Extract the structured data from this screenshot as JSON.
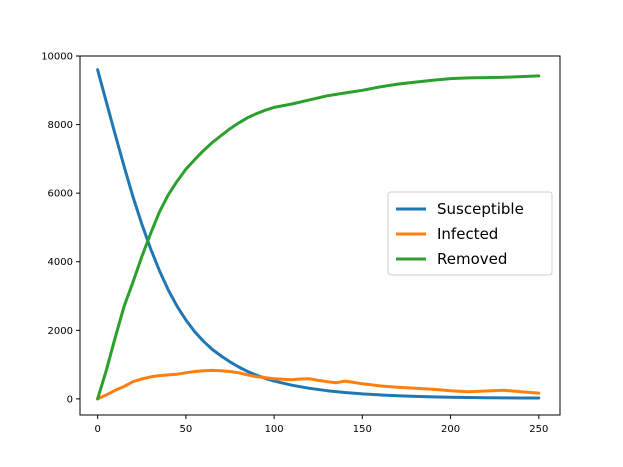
{
  "chart_data": {
    "type": "line",
    "title": "",
    "xlabel": "",
    "ylabel": "",
    "xlim": [
      -10,
      262
    ],
    "ylim": [
      -470,
      10000
    ],
    "xticks": [
      0,
      50,
      100,
      150,
      200,
      250
    ],
    "yticks": [
      0,
      2000,
      4000,
      6000,
      8000,
      10000
    ],
    "grid": false,
    "legend_position": "center-right",
    "series": [
      {
        "name": "Susceptible",
        "color": "#1f77b4",
        "x": [
          0,
          5,
          10,
          15,
          20,
          25,
          30,
          35,
          40,
          45,
          50,
          55,
          60,
          65,
          70,
          75,
          80,
          85,
          90,
          95,
          100,
          110,
          120,
          130,
          140,
          150,
          160,
          170,
          180,
          190,
          200,
          210,
          220,
          230,
          240,
          250
        ],
        "y": [
          9600,
          8640,
          7700,
          6780,
          5900,
          5100,
          4380,
          3740,
          3180,
          2700,
          2300,
          1960,
          1680,
          1440,
          1250,
          1080,
          930,
          800,
          690,
          600,
          520,
          400,
          310,
          240,
          185,
          145,
          115,
          90,
          72,
          58,
          48,
          40,
          35,
          30,
          27,
          25
        ]
      },
      {
        "name": "Infected",
        "color": "#ff7f0e",
        "x": [
          0,
          5,
          10,
          15,
          20,
          25,
          30,
          35,
          40,
          45,
          50,
          55,
          60,
          65,
          70,
          75,
          80,
          85,
          90,
          95,
          100,
          105,
          110,
          115,
          120,
          125,
          130,
          135,
          140,
          145,
          150,
          160,
          170,
          180,
          190,
          200,
          210,
          220,
          230,
          240,
          250
        ],
        "y": [
          0,
          120,
          250,
          360,
          500,
          580,
          640,
          680,
          700,
          720,
          760,
          800,
          820,
          830,
          820,
          800,
          760,
          700,
          650,
          620,
          590,
          570,
          560,
          580,
          590,
          540,
          500,
          470,
          520,
          480,
          440,
          380,
          340,
          310,
          280,
          240,
          210,
          230,
          250,
          210,
          170
        ]
      },
      {
        "name": "Removed",
        "color": "#2ca02c",
        "x": [
          0,
          5,
          10,
          15,
          20,
          25,
          30,
          35,
          40,
          45,
          50,
          55,
          60,
          65,
          70,
          75,
          80,
          85,
          90,
          95,
          100,
          110,
          120,
          130,
          140,
          150,
          160,
          170,
          180,
          190,
          200,
          210,
          220,
          230,
          240,
          250
        ],
        "y": [
          0,
          850,
          1800,
          2700,
          3400,
          4150,
          4820,
          5450,
          5950,
          6350,
          6700,
          6980,
          7240,
          7480,
          7680,
          7880,
          8050,
          8200,
          8320,
          8420,
          8500,
          8600,
          8720,
          8840,
          8920,
          9000,
          9100,
          9180,
          9240,
          9290,
          9340,
          9360,
          9370,
          9380,
          9400,
          9420
        ]
      }
    ]
  }
}
